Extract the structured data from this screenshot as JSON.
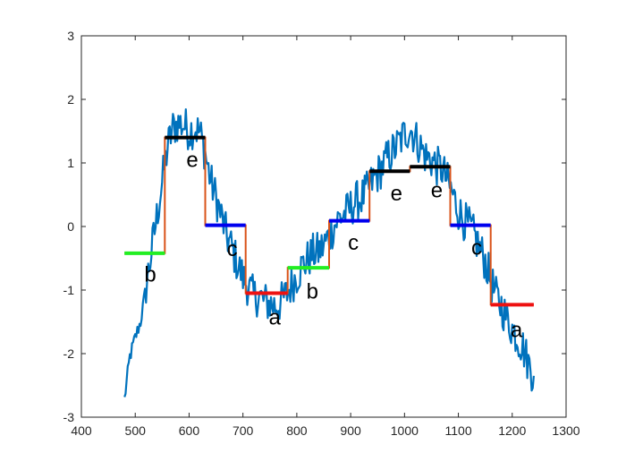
{
  "chart_data": {
    "type": "line",
    "title": "",
    "xlabel": "",
    "ylabel": "",
    "xlim": [
      400,
      1300
    ],
    "ylim": [
      -3,
      3
    ],
    "x_ticks": [
      400,
      500,
      600,
      700,
      800,
      900,
      1000,
      1100,
      1200,
      1300
    ],
    "y_ticks": [
      -3,
      -2,
      -1,
      0,
      1,
      2,
      3
    ],
    "grid": false,
    "series": [
      {
        "type": "noisy_line",
        "color": "#0072BD",
        "points": [
          [
            480,
            -2.72
          ],
          [
            490,
            -2.05
          ],
          [
            500,
            -1.75
          ],
          [
            510,
            -1.5
          ],
          [
            520,
            -0.95
          ],
          [
            530,
            -0.4
          ],
          [
            540,
            0.15
          ],
          [
            550,
            0.7
          ],
          [
            560,
            1.25
          ],
          [
            570,
            1.55
          ],
          [
            580,
            1.62
          ],
          [
            590,
            1.6
          ],
          [
            600,
            1.5
          ],
          [
            610,
            1.55
          ],
          [
            620,
            1.48
          ],
          [
            630,
            1.15
          ],
          [
            640,
            0.72
          ],
          [
            650,
            0.45
          ],
          [
            660,
            0.15
          ],
          [
            670,
            -0.15
          ],
          [
            680,
            -0.35
          ],
          [
            690,
            -0.6
          ],
          [
            700,
            -0.8
          ],
          [
            710,
            -0.95
          ],
          [
            720,
            -1.1
          ],
          [
            730,
            -1.1
          ],
          [
            740,
            -1.18
          ],
          [
            750,
            -1.22
          ],
          [
            760,
            -1.25
          ],
          [
            770,
            -1.2
          ],
          [
            780,
            -1.08
          ],
          [
            790,
            -0.92
          ],
          [
            800,
            -0.78
          ],
          [
            810,
            -0.62
          ],
          [
            820,
            -0.52
          ],
          [
            830,
            -0.42
          ],
          [
            840,
            -0.4
          ],
          [
            850,
            -0.3
          ],
          [
            860,
            -0.15
          ],
          [
            870,
            0.02
          ],
          [
            880,
            0.15
          ],
          [
            890,
            0.2
          ],
          [
            900,
            0.3
          ],
          [
            910,
            0.4
          ],
          [
            920,
            0.45
          ],
          [
            930,
            0.55
          ],
          [
            940,
            0.7
          ],
          [
            950,
            0.82
          ],
          [
            960,
            0.95
          ],
          [
            970,
            1.1
          ],
          [
            980,
            1.2
          ],
          [
            990,
            1.32
          ],
          [
            1000,
            1.45
          ],
          [
            1010,
            1.55
          ],
          [
            1020,
            1.4
          ],
          [
            1030,
            1.25
          ],
          [
            1040,
            1.1
          ],
          [
            1050,
            1.05
          ],
          [
            1060,
            0.95
          ],
          [
            1070,
            0.9
          ],
          [
            1080,
            0.7
          ],
          [
            1090,
            0.5
          ],
          [
            1100,
            0.25
          ],
          [
            1110,
            0.1
          ],
          [
            1120,
            0.0
          ],
          [
            1130,
            -0.15
          ],
          [
            1140,
            -0.35
          ],
          [
            1150,
            -0.55
          ],
          [
            1160,
            -0.85
          ],
          [
            1170,
            -1.1
          ],
          [
            1180,
            -1.25
          ],
          [
            1190,
            -1.45
          ],
          [
            1200,
            -1.6
          ],
          [
            1210,
            -1.75
          ],
          [
            1220,
            -1.9
          ],
          [
            1230,
            -2.15
          ],
          [
            1240,
            -2.35
          ]
        ]
      },
      {
        "type": "step_line",
        "color": "#D95319",
        "points": [
          [
            480,
            -0.42
          ],
          [
            555,
            -0.42
          ],
          [
            555,
            1.4
          ],
          [
            630,
            1.4
          ],
          [
            630,
            0.02
          ],
          [
            705,
            0.02
          ],
          [
            705,
            -1.05
          ],
          [
            783,
            -1.05
          ],
          [
            783,
            -0.65
          ],
          [
            860,
            -0.65
          ],
          [
            860,
            0.09
          ],
          [
            935,
            0.09
          ],
          [
            935,
            0.87
          ],
          [
            1010,
            0.87
          ],
          [
            1010,
            0.94
          ],
          [
            1085,
            0.94
          ],
          [
            1085,
            0.02
          ],
          [
            1160,
            0.02
          ],
          [
            1160,
            -1.23
          ],
          [
            1240,
            -1.23
          ]
        ]
      }
    ],
    "segments": [
      {
        "x0": 480,
        "x1": 555,
        "y": -0.42,
        "color": "#22EE22",
        "label": "b",
        "label_x": 528,
        "label_y": -0.75
      },
      {
        "x0": 555,
        "x1": 630,
        "y": 1.4,
        "color": "#000000",
        "label": "e",
        "label_x": 606,
        "label_y": 1.05
      },
      {
        "x0": 630,
        "x1": 705,
        "y": 0.02,
        "color": "#0000EE",
        "label": "c",
        "label_x": 680,
        "label_y": -0.35
      },
      {
        "x0": 705,
        "x1": 783,
        "y": -1.05,
        "color": "#EE1111",
        "label": "a",
        "label_x": 759,
        "label_y": -1.43
      },
      {
        "x0": 783,
        "x1": 860,
        "y": -0.65,
        "color": "#22EE22",
        "label": "b",
        "label_x": 829,
        "label_y": -1.02
      },
      {
        "x0": 860,
        "x1": 935,
        "y": 0.09,
        "color": "#0000EE",
        "label": "c",
        "label_x": 905,
        "label_y": -0.25
      },
      {
        "x0": 935,
        "x1": 1010,
        "y": 0.87,
        "color": "#000000",
        "label": "e",
        "label_x": 985,
        "label_y": 0.52
      },
      {
        "x0": 1010,
        "x1": 1085,
        "y": 0.94,
        "color": "#000000",
        "label": "e",
        "label_x": 1060,
        "label_y": 0.57
      },
      {
        "x0": 1085,
        "x1": 1160,
        "y": 0.02,
        "color": "#0000EE",
        "label": "c",
        "label_x": 1134,
        "label_y": -0.33
      },
      {
        "x0": 1160,
        "x1": 1240,
        "y": -1.23,
        "color": "#EE1111",
        "label": "a",
        "label_x": 1208,
        "label_y": -1.63
      }
    ]
  }
}
